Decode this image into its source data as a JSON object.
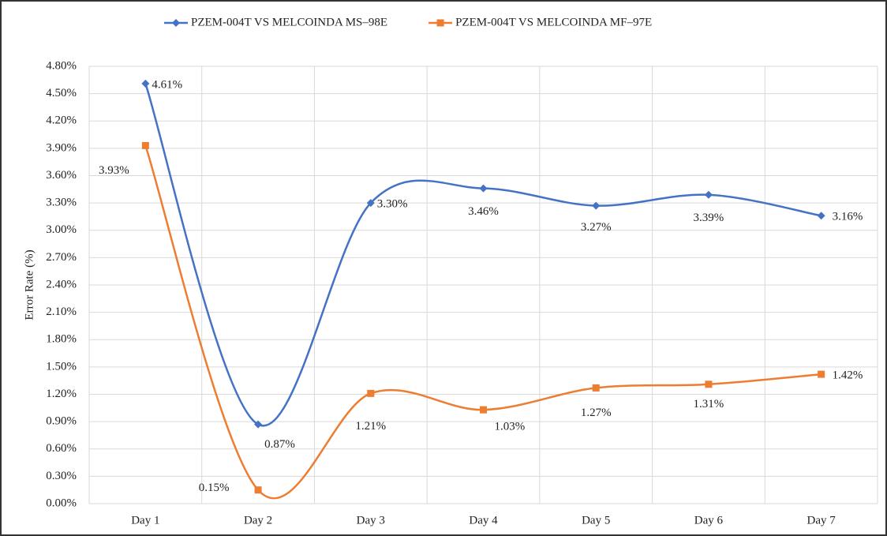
{
  "chart_data": {
    "type": "line",
    "y_label": "Error Rate (%)",
    "categories": [
      "Day 1",
      "Day 2",
      "Day 3",
      "Day 4",
      "Day 5",
      "Day 6",
      "Day 7"
    ],
    "series": [
      {
        "name": "PZEM-004T VS MELCOINDA MS–98E",
        "color": "#4472c4",
        "marker": "diamond",
        "values": [
          4.61,
          0.87,
          3.3,
          3.46,
          3.27,
          3.39,
          3.16
        ],
        "value_labels": [
          "4.61%",
          "0.87%",
          "3.30%",
          "3.46%",
          "3.27%",
          "3.39%",
          "3.16%"
        ]
      },
      {
        "name": "PZEM-004T VS MELCOINDA MF–97E",
        "color": "#ed7d31",
        "marker": "square",
        "values": [
          3.93,
          0.15,
          1.21,
          1.03,
          1.27,
          1.31,
          1.42
        ],
        "value_labels": [
          "3.93%",
          "0.15%",
          "1.21%",
          "1.03%",
          "1.27%",
          "1.31%",
          "1.42%"
        ]
      }
    ],
    "ylim": [
      0,
      4.8
    ],
    "yticks": [
      {
        "value": 0,
        "label": "0.00%"
      },
      {
        "value": 0.3,
        "label": "0.30%"
      },
      {
        "value": 0.6,
        "label": "0.60%"
      },
      {
        "value": 0.9,
        "label": "0.90%"
      },
      {
        "value": 1.2,
        "label": "1.20%"
      },
      {
        "value": 1.5,
        "label": "1.50%"
      },
      {
        "value": 1.8,
        "label": "1.80%"
      },
      {
        "value": 2.1,
        "label": "2.10%"
      },
      {
        "value": 2.4,
        "label": "2.40%"
      },
      {
        "value": 2.7,
        "label": "2.70%"
      },
      {
        "value": 3.0,
        "label": "3.00%"
      },
      {
        "value": 3.3,
        "label": "3.30%"
      },
      {
        "value": 3.6,
        "label": "3.60%"
      },
      {
        "value": 3.9,
        "label": "3.90%"
      },
      {
        "value": 4.2,
        "label": "4.20%"
      },
      {
        "value": 4.5,
        "label": "4.50%"
      },
      {
        "value": 4.8,
        "label": "4.80%"
      }
    ],
    "grid": true,
    "smooth": true,
    "legend": "top"
  }
}
